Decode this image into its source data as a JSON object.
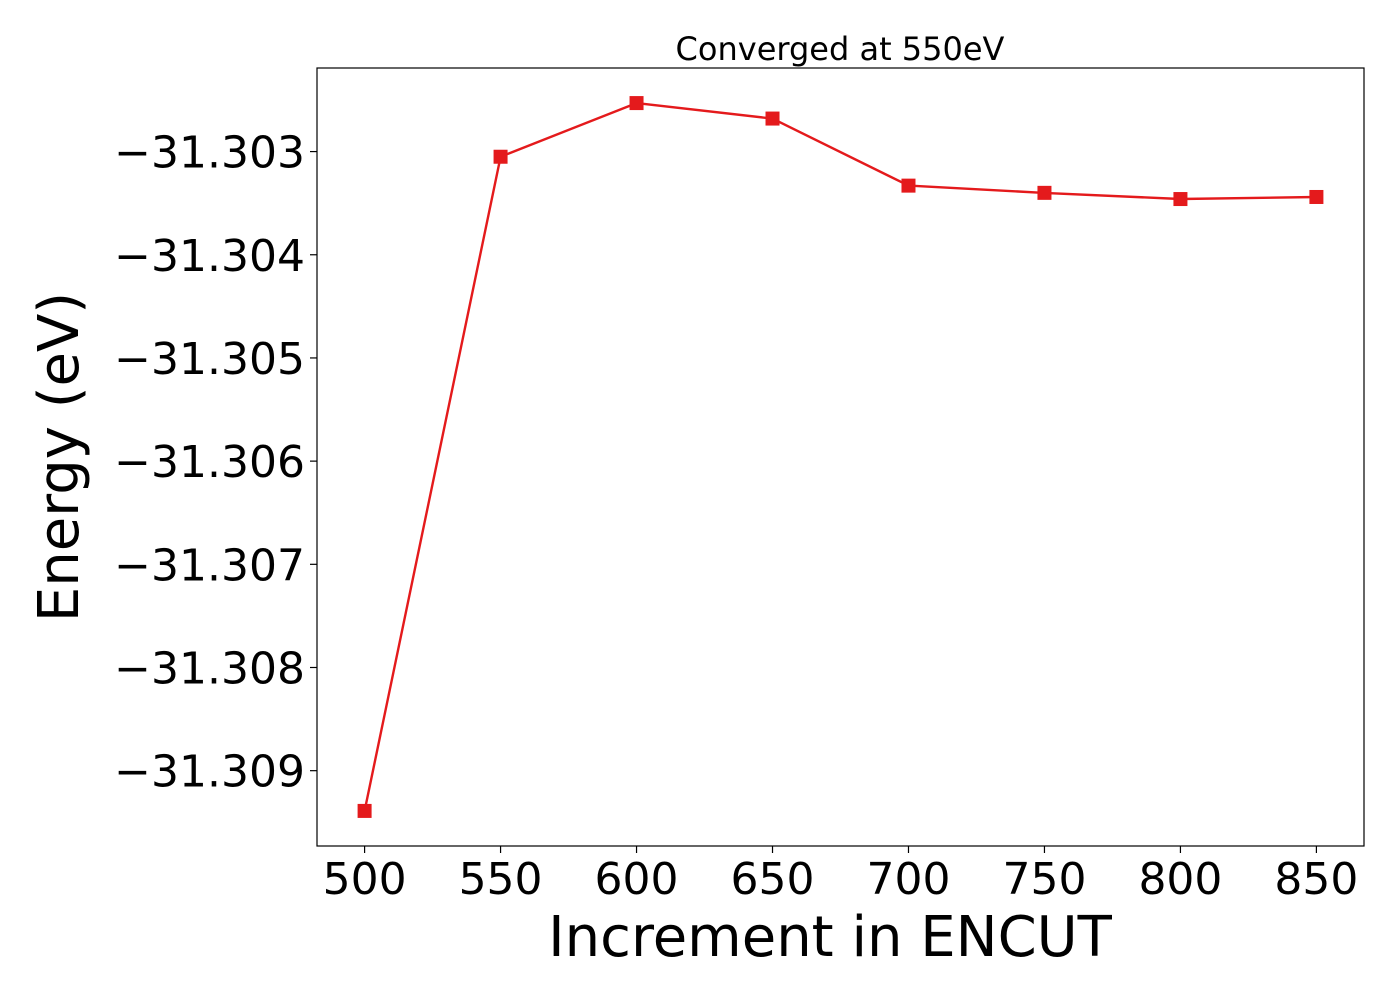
{
  "chart_data": {
    "type": "line",
    "title": "Converged at 550eV",
    "xlabel": "Increment in ENCUT",
    "ylabel": "Energy (eV)",
    "x": [
      500,
      550,
      600,
      650,
      700,
      750,
      800,
      850
    ],
    "series": [
      {
        "values": [
          -31.30939,
          -31.30305,
          -31.30253,
          -31.30268,
          -31.30333,
          -31.3034,
          -31.30346,
          -31.30344
        ],
        "color": "#e41a1c",
        "marker": "square"
      }
    ],
    "xlim": [
      482.5,
      867.5
    ],
    "ylim": [
      -31.30973,
      -31.30219
    ],
    "xticks": [
      500,
      550,
      600,
      650,
      700,
      750,
      800,
      850
    ],
    "xtick_labels": [
      "500",
      "550",
      "600",
      "650",
      "700",
      "750",
      "800",
      "850"
    ],
    "yticks": [
      -31.303,
      -31.304,
      -31.305,
      -31.306,
      -31.307,
      -31.308,
      -31.309
    ],
    "ytick_labels": [
      "−31.303",
      "−31.304",
      "−31.305",
      "−31.306",
      "−31.307",
      "−31.308",
      "−31.309"
    ],
    "grid": false,
    "legend": "none"
  }
}
